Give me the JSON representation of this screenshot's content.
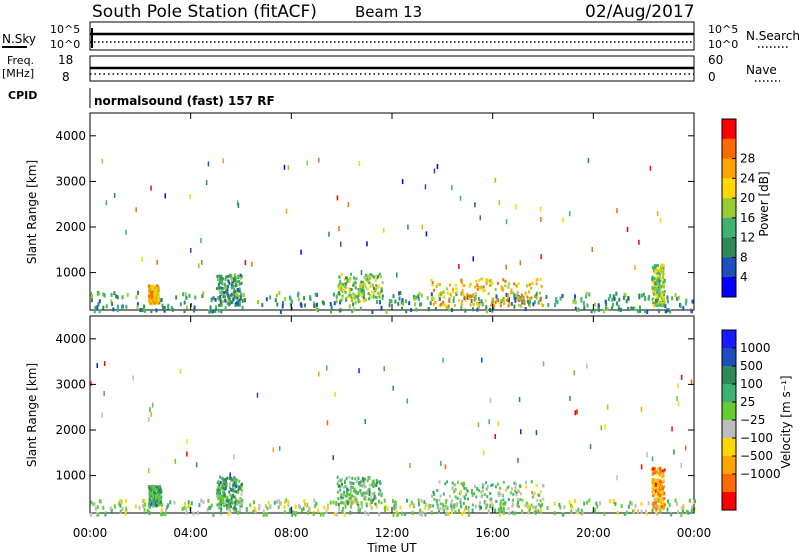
{
  "header": {
    "station": "South Pole Station (fitACF)",
    "beam": "Beam 13",
    "date": "02/Aug/2017"
  },
  "noise_panel": {
    "left_label": "N.Sky",
    "left_ticks": [
      "10^5",
      "10^0"
    ],
    "right_ticks": [
      "10^5",
      "10^0"
    ],
    "right_label": "N.Search"
  },
  "freq_panel": {
    "left_label_line1": "Freq.",
    "left_label_line2": "[MHz]",
    "left_ticks": [
      "18",
      "8"
    ],
    "right_ticks": [
      "60",
      "0"
    ],
    "right_label": "Nave"
  },
  "cpid_panel": {
    "label": "CPID",
    "text": "normalsound (fast) 157 RF"
  },
  "axes": {
    "ylabel": "Slant Range [km]",
    "xlabel": "Time UT",
    "y_ticks": [
      "1000",
      "2000",
      "3000",
      "4000"
    ],
    "x_ticks": [
      "00:00",
      "04:00",
      "08:00",
      "12:00",
      "16:00",
      "20:00",
      "00:00"
    ]
  },
  "power_colorbar": {
    "label": "Power [dB]",
    "ticks": [
      "4",
      "8",
      "12",
      "16",
      "20",
      "24",
      "28"
    ],
    "colors": [
      "#0000ff",
      "#1f4fbf",
      "#2e8b57",
      "#3cb371",
      "#9acd32",
      "#ffd700",
      "#ffa500",
      "#ff6a00",
      "#ff0000"
    ]
  },
  "velocity_colorbar": {
    "label": "Velocity [m s⁻¹]",
    "ticks": [
      "1000",
      "500",
      "100",
      "25",
      "−25",
      "−100",
      "−500",
      "−1000"
    ],
    "colors": [
      "#1a1aff",
      "#1f4fbf",
      "#2e8b57",
      "#3cb371",
      "#66cc33",
      "#bdbdbd",
      "#ffd700",
      "#ffa500",
      "#ff6a00",
      "#ff0000"
    ]
  },
  "chart_data": [
    {
      "type": "heatmap",
      "title": "Power",
      "xlabel": "Time UT",
      "ylabel": "Slant Range [km]",
      "xlim": [
        0,
        24
      ],
      "ylim": [
        180,
        4500
      ],
      "colorbar": {
        "label": "Power [dB]",
        "range": [
          0,
          30
        ]
      },
      "echo_regions": [
        {
          "t_start": 0,
          "t_end": 24,
          "range_start": 180,
          "range_end": 600,
          "value": 10
        },
        {
          "t_start": 2.3,
          "t_end": 2.7,
          "range_start": 350,
          "range_end": 750,
          "value": 20
        },
        {
          "t_start": 5.0,
          "t_end": 6.0,
          "range_start": 300,
          "range_end": 1000,
          "value": 10
        },
        {
          "t_start": 9.8,
          "t_end": 11.6,
          "range_start": 400,
          "range_end": 1000,
          "value": 14
        },
        {
          "t_start": 13.5,
          "t_end": 18.0,
          "range_start": 300,
          "range_end": 900,
          "value": 20
        },
        {
          "t_start": 22.3,
          "t_end": 22.8,
          "range_start": 300,
          "range_end": 1200,
          "value": 14
        }
      ]
    },
    {
      "type": "heatmap",
      "title": "Velocity",
      "xlabel": "Time UT",
      "ylabel": "Slant Range [km]",
      "xlim": [
        0,
        24
      ],
      "ylim": [
        180,
        4500
      ],
      "colorbar": {
        "label": "Velocity [m s⁻¹]",
        "range": [
          -1000,
          1000
        ]
      },
      "echo_regions": [
        {
          "t_start": 0,
          "t_end": 24,
          "range_start": 180,
          "range_end": 500,
          "value": 0
        },
        {
          "t_start": 2.3,
          "t_end": 2.8,
          "range_start": 350,
          "range_end": 800,
          "value": 300
        },
        {
          "t_start": 5.0,
          "t_end": 6.0,
          "range_start": 300,
          "range_end": 1000,
          "value": 300
        },
        {
          "t_start": 9.8,
          "t_end": 11.6,
          "range_start": 400,
          "range_end": 1000,
          "value": 200
        },
        {
          "t_start": 13.5,
          "t_end": 18.0,
          "range_start": 300,
          "range_end": 900,
          "value": 100
        },
        {
          "t_start": 22.3,
          "t_end": 22.8,
          "range_start": 300,
          "range_end": 1200,
          "value": -500
        }
      ]
    }
  ]
}
